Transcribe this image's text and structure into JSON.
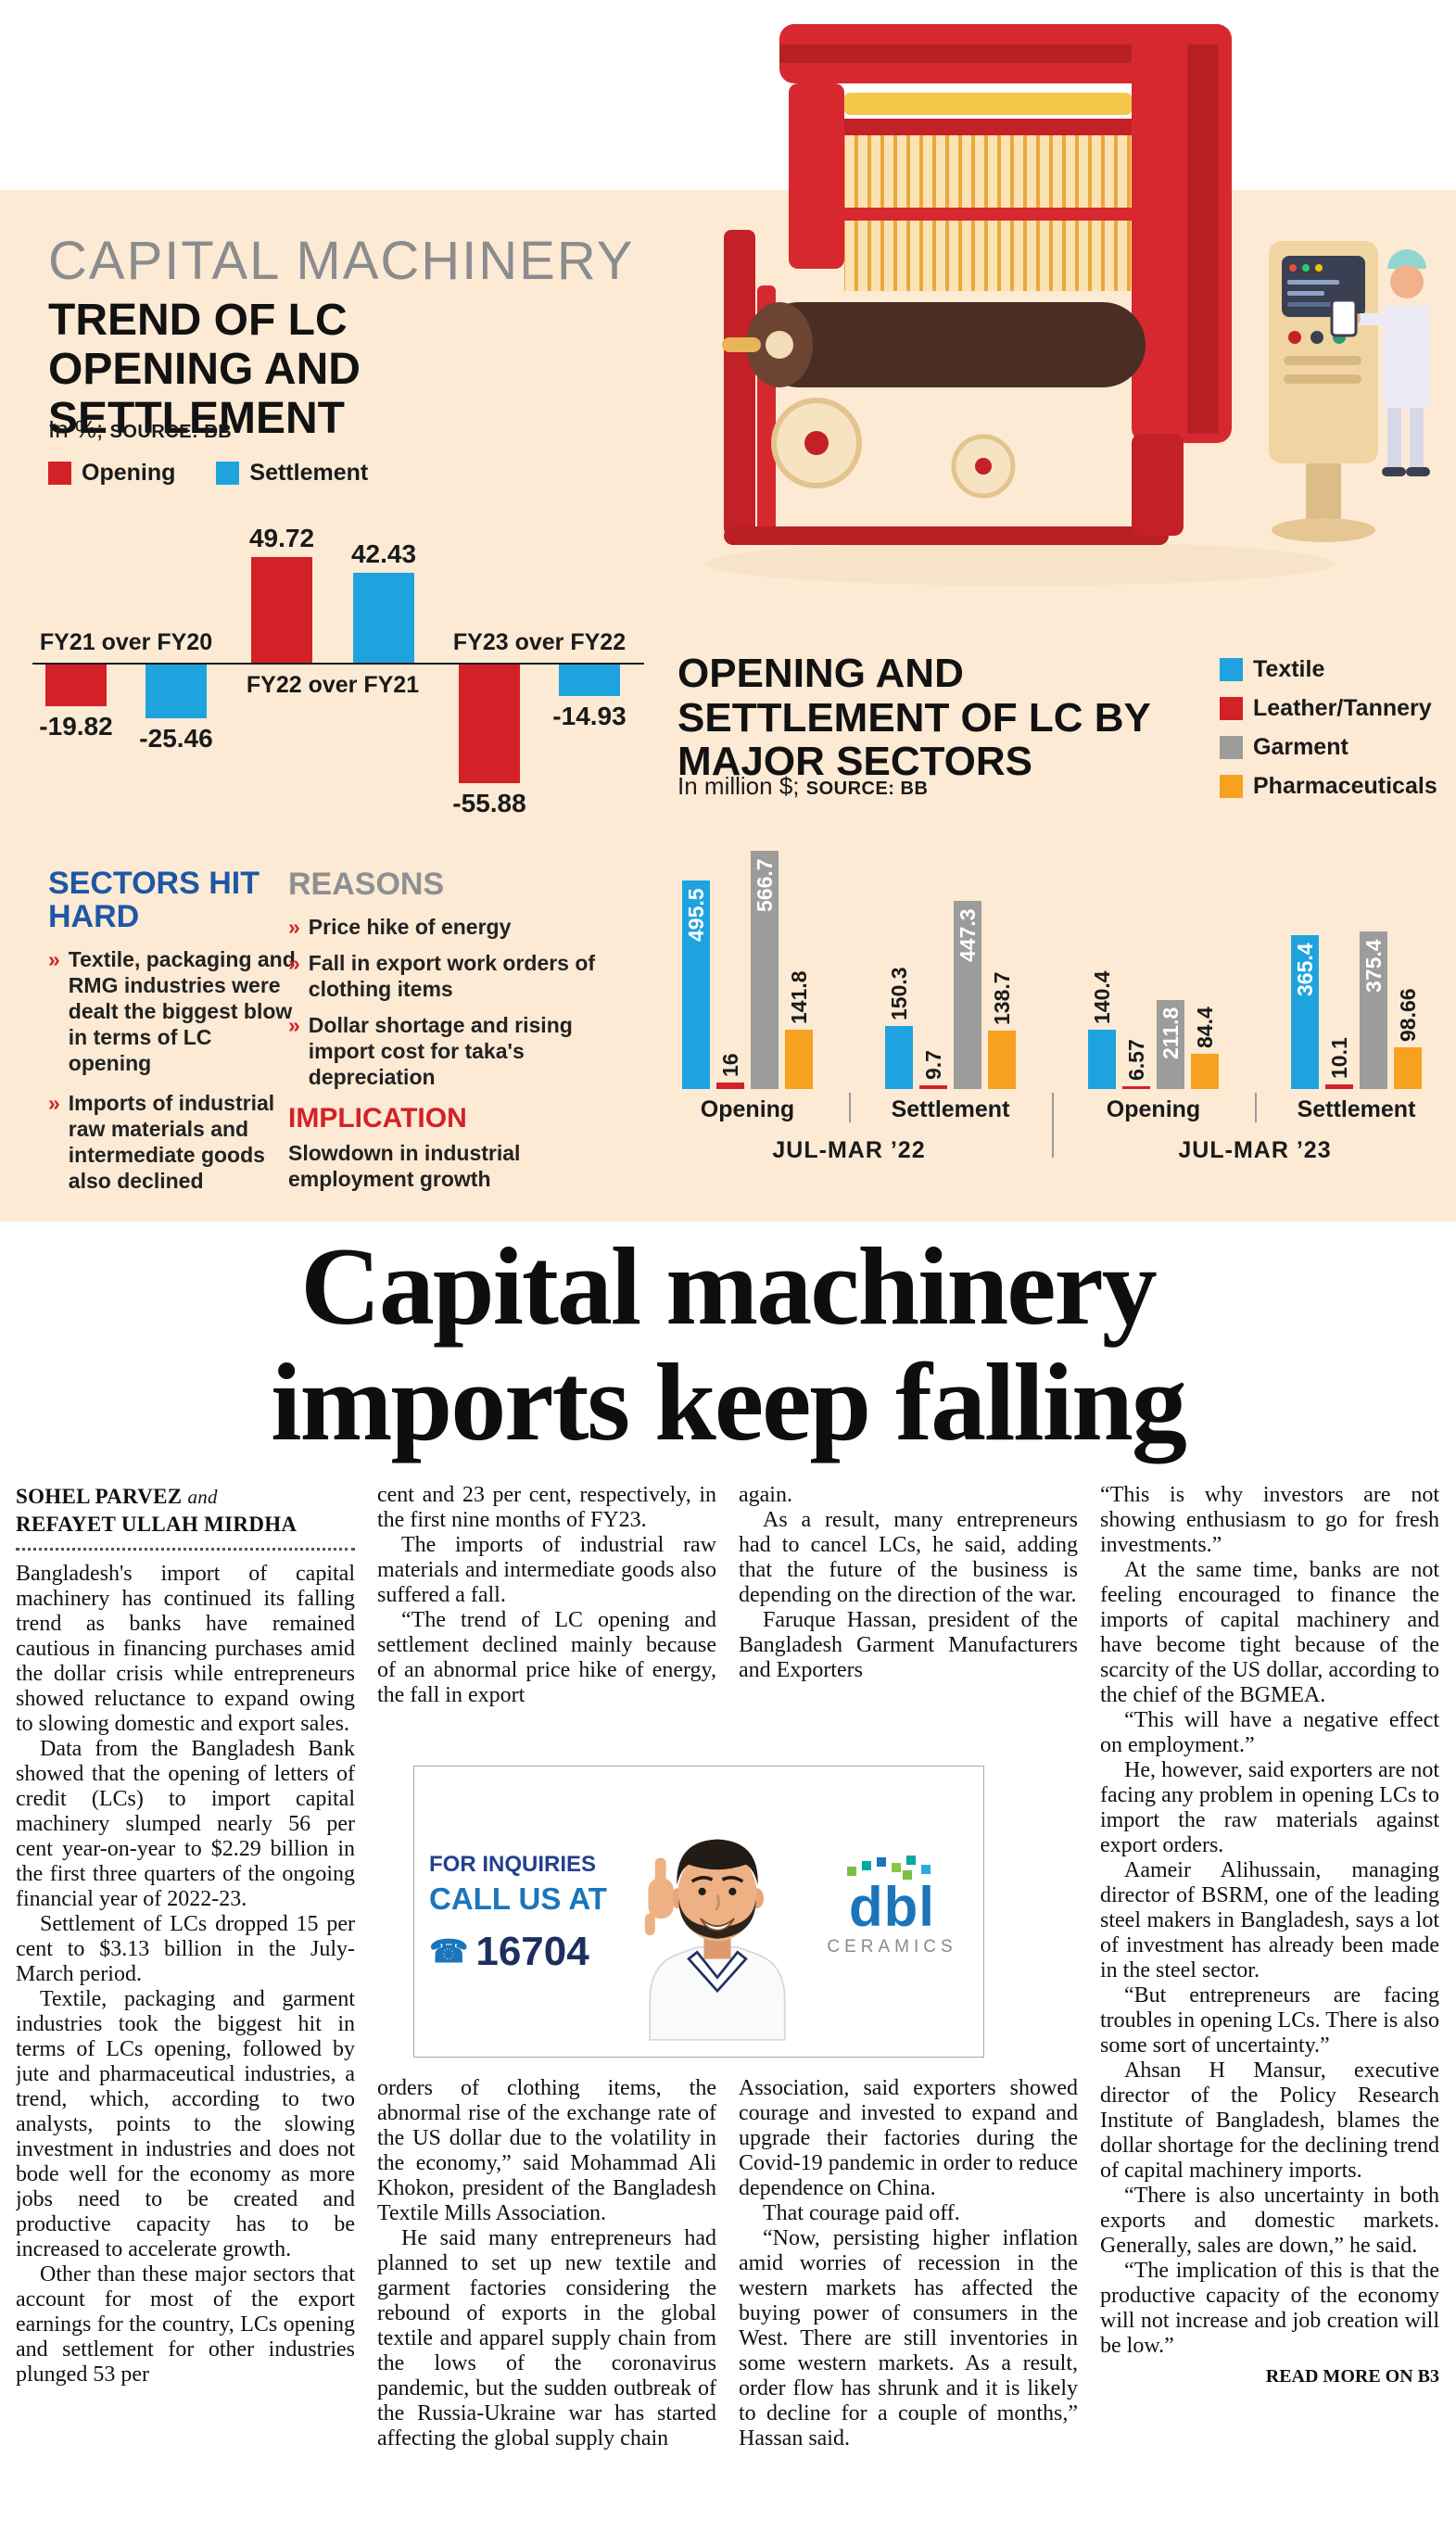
{
  "chart_data": [
    {
      "type": "bar",
      "kicker": "CAPITAL MACHINERY",
      "title": "TREND OF LC OPENING AND SETTLEMENT",
      "unit_note": "In %;",
      "source": "SOURCE: BB",
      "categories": [
        "FY21 over FY20",
        "FY22 over FY21",
        "FY23 over FY22"
      ],
      "series": [
        {
          "name": "Opening",
          "color": "#d32128",
          "values": [
            -19.82,
            49.72,
            -55.88
          ]
        },
        {
          "name": "Settlement",
          "color": "#1fa3de",
          "values": [
            -25.46,
            42.43,
            -14.93
          ]
        }
      ],
      "ylim": [
        -60,
        55
      ],
      "grid": false,
      "legend_position": "top-left"
    },
    {
      "type": "bar",
      "title": "OPENING AND SETTLEMENT OF LC BY MAJOR SECTORS",
      "unit_note": "In million $;",
      "source": "SOURCE: BB",
      "group_labels": [
        "JUL-MAR ’22",
        "JUL-MAR ’23"
      ],
      "categories": [
        "Opening",
        "Settlement",
        "Opening",
        "Settlement"
      ],
      "series": [
        {
          "name": "Textile",
          "color": "#1fa3de",
          "values": [
            495.5,
            150.3,
            140.4,
            365.4
          ]
        },
        {
          "name": "Leather/Tannery",
          "color": "#d32128",
          "values": [
            16,
            9.7,
            6.57,
            10.1
          ]
        },
        {
          "name": "Garment",
          "color": "#9c9c9b",
          "values": [
            566.7,
            447.3,
            211.8,
            375.4
          ]
        },
        {
          "name": "Pharmaceuticals",
          "color": "#f6a120",
          "values": [
            141.8,
            138.7,
            84.4,
            98.66
          ]
        }
      ],
      "ylim": [
        0,
        600
      ],
      "grid": false,
      "legend_position": "top-right"
    }
  ],
  "infographic": {
    "bullet_icon": "»",
    "sectors_hit_hard": {
      "heading": "SECTORS HIT HARD",
      "items": [
        "Textile, packaging and RMG industries were dealt the biggest blow in terms of LC opening",
        "Imports of industrial raw materials and intermediate goods also declined"
      ]
    },
    "reasons": {
      "heading": "REASONS",
      "items": [
        "Price hike of energy",
        "Fall in export work orders of clothing items",
        "Dollar shortage and rising import cost for taka's depreciation"
      ]
    },
    "implication": {
      "heading": "IMPLICATION",
      "text": "Slowdown in industrial employment growth"
    }
  },
  "headline": {
    "line1": "Capital machinery",
    "line2": "imports keep falling"
  },
  "byline": {
    "author1": "SOHEL PARVEZ",
    "connector": "and",
    "author2": "REFAYET ULLAH MIRDHA"
  },
  "article": {
    "col1": [
      "Bangladesh's import of capital machinery has continued its falling trend as banks have remained cautious in financing purchases amid the dollar crisis while entrepreneurs showed reluctance to expand owing to slowing domestic and export sales.",
      "Data from the Bangladesh Bank showed that the opening of letters of credit (LCs) to import capital machinery slumped nearly 56 per cent year-on-year to $2.29 billion in the first three quarters of the ongoing financial year of 2022-23.",
      "Settlement of LCs dropped 15 per cent to $3.13 billion in the July-March period.",
      "Textile, packaging and garment industries took the biggest hit in terms of LCs opening, followed by jute and pharmaceutical industries, a trend, which, according to two analysts, points to the slowing investment in industries and does not bode well for the economy as more jobs need to be created and productive capacity has to be increased to accelerate growth.",
      "Other than these major sectors that account for most of the export earnings for the country, LCs opening and settlement for other industries plunged 53 per"
    ],
    "col2_top": [
      "cent and 23 per cent, respectively, in the first nine months of FY23.",
      "The imports of industrial raw materials and intermediate goods also suffered a fall.",
      "“The trend of LC opening and settlement declined mainly because of an abnormal price hike of energy, the fall in export"
    ],
    "col2_bottom": [
      "orders of clothing items, the abnormal rise of the exchange rate of the US dollar due to the volatility in the economy,” said Mohammad Ali Khokon, president of the Bangladesh Textile Mills Association.",
      "He said many entrepreneurs had planned to set up new textile and garment factories considering the rebound of exports in the global textile and apparel supply chain from the lows of the coronavirus pandemic, but the sudden outbreak of the Russia-Ukraine war has started affecting the global supply chain"
    ],
    "col3_top": [
      "again.",
      "As a result, many entrepreneurs had to cancel LCs, he said, adding that the future of the business is depending on the direction of the war.",
      "Faruque Hassan, president of the Bangladesh Garment Manufacturers and Exporters"
    ],
    "col3_bottom": [
      "Association, said exporters showed courage and invested to expand and upgrade their factories during the Covid-19 pandemic in order to reduce dependence on China.",
      "That courage paid off.",
      "“Now, persisting higher inflation amid worries of recession in the western markets has affected the buying power of consumers in the West. There are still inventories in some western markets. As a result, order flow has shrunk and it is likely to decline for a couple of months,” Hassan said."
    ],
    "col4": [
      "“This is why investors are not showing enthusiasm to go for fresh investments.”",
      "At the same time, banks are not feeling encouraged to finance the imports of capital machinery and have become tight because of the scarcity of the US dollar, according to the chief of the BGMEA.",
      "“This will have a negative effect on employment.”",
      "He, however, said exporters are not facing any problem in opening LCs to import the raw materials against export orders.",
      "Aameir Alihussain, managing director of BSRM, one of the leading steel makers in Bangladesh, says a lot of investment has already been made in the steel sector.",
      "“But entrepreneurs are facing troubles in opening LCs. There is also some sort of uncertainty.”",
      "Ahsan H Mansur, executive director of the Policy Research Institute of Bangladesh, blames the dollar shortage for the declining trend of capital machinery imports.",
      "“There is also uncertainty in both exports and domestic markets. Generally, sales are down,” he said.",
      "“The implication of this is that the productive capacity of the economy will not increase and job creation will be low.”"
    ],
    "read_more": "READ MORE ON B3"
  },
  "ad": {
    "line1": "FOR INQUIRIES",
    "line2": "CALL US AT",
    "phone_icon": "☎",
    "phone": "16704",
    "brand": "dbl",
    "brand_sub": "CERAMICS"
  }
}
